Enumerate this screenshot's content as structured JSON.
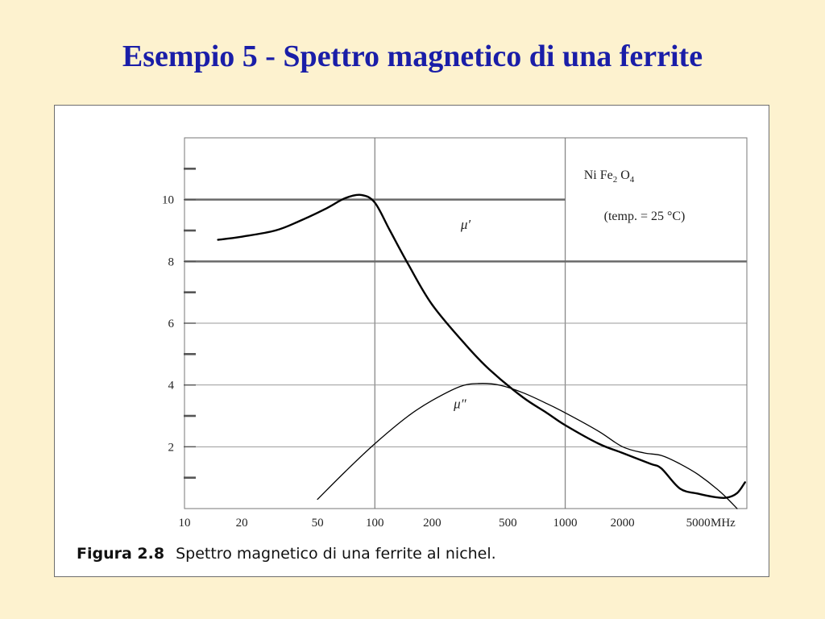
{
  "slide": {
    "title": "Esempio 5 - Spettro magnetico di una ferrite"
  },
  "figure": {
    "caption_label": "Figura 2.8",
    "caption_text": "Spettro magnetico di una ferrite al nichel."
  },
  "chart_data": {
    "type": "line",
    "xscale": "log",
    "xlim": [
      10,
      9000
    ],
    "ylim": [
      0,
      12
    ],
    "x_ticks": [
      10,
      20,
      50,
      100,
      200,
      500,
      1000,
      2000,
      5000
    ],
    "x_unit": "MHz",
    "y_ticks": [
      2,
      4,
      6,
      8,
      10
    ],
    "grid": true,
    "annotation": {
      "line1_prefix": "Ni Fe",
      "line1_sub1": "2",
      "line1_mid": " O",
      "line1_sub2": "4",
      "line2": "(temp. = 25 °C)"
    },
    "series": [
      {
        "name": "μ′",
        "x": [
          15,
          20,
          30,
          40,
          55,
          70,
          85,
          100,
          120,
          150,
          200,
          300,
          400,
          600,
          800,
          1000,
          1500,
          2000,
          2800,
          3200,
          4000,
          5000,
          6000,
          7000,
          8000,
          8800
        ],
        "y": [
          8.7,
          8.8,
          9.0,
          9.3,
          9.7,
          10.05,
          10.15,
          9.9,
          9.0,
          7.9,
          6.6,
          5.3,
          4.5,
          3.6,
          3.1,
          2.7,
          2.1,
          1.8,
          1.45,
          1.3,
          0.65,
          0.48,
          0.38,
          0.35,
          0.5,
          0.85
        ]
      },
      {
        "name": "μ″",
        "x": [
          50,
          70,
          100,
          150,
          200,
          280,
          350,
          450,
          600,
          800,
          1000,
          1500,
          2000,
          2600,
          3200,
          4000,
          5000,
          6500,
          8000
        ],
        "y": [
          0.3,
          1.2,
          2.1,
          3.0,
          3.5,
          3.95,
          4.05,
          4.0,
          3.75,
          3.4,
          3.1,
          2.5,
          2.0,
          1.8,
          1.72,
          1.45,
          1.1,
          0.55,
          0.0
        ]
      }
    ]
  }
}
